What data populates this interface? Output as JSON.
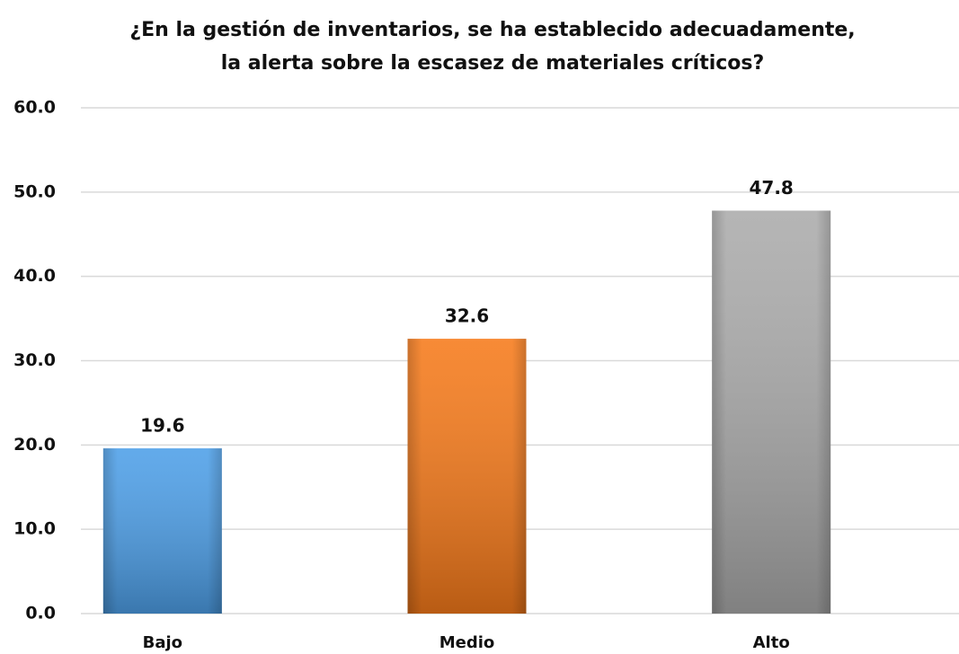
{
  "chart_data": {
    "type": "bar",
    "title": [
      "¿En la gestión de inventarios, se ha establecido adecuadamente,",
      "la alerta sobre la escasez de materiales críticos?"
    ],
    "categories": [
      "Bajo",
      "Medio",
      "Alto"
    ],
    "values": [
      19.6,
      32.6,
      47.8
    ],
    "colors": [
      "#4d9fe8",
      "#f67a1a",
      "#ababab"
    ],
    "ylim": [
      0,
      60
    ],
    "yticks": [
      {
        "value": 0,
        "label": "0.0"
      },
      {
        "value": 10,
        "label": "10.0"
      },
      {
        "value": 20,
        "label": "20.0"
      },
      {
        "value": 30,
        "label": "30.0"
      },
      {
        "value": 40,
        "label": "40.0"
      },
      {
        "value": 50,
        "label": "50.0"
      },
      {
        "value": 60,
        "label": "60.0"
      }
    ],
    "grid": true
  }
}
